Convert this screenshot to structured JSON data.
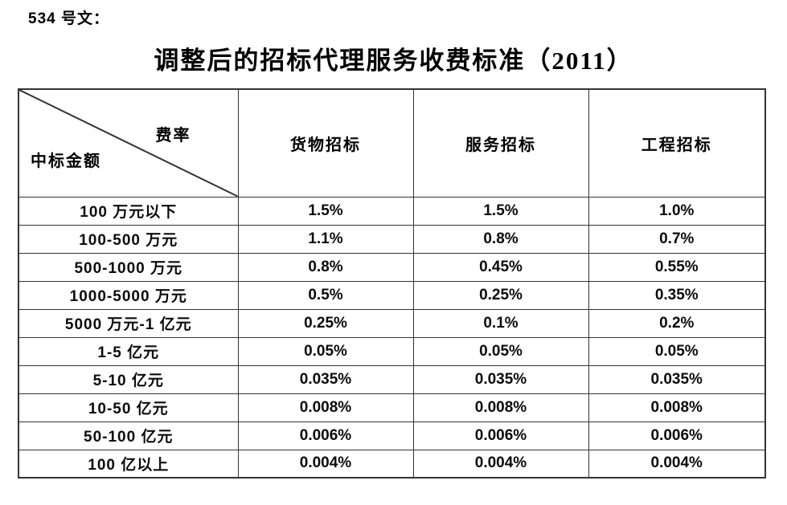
{
  "doc_number": "534 号文：",
  "title": "调整后的招标代理服务收费标准（2011）",
  "table": {
    "corner": {
      "top_right_label": "费率",
      "bottom_left_label": "中标金额"
    },
    "columns": [
      "货物招标",
      "服务招标",
      "工程招标"
    ],
    "rows": [
      {
        "label": "100 万元以下",
        "values": [
          "1.5%",
          "1.5%",
          "1.0%"
        ]
      },
      {
        "label": "100-500 万元",
        "values": [
          "1.1%",
          "0.8%",
          "0.7%"
        ]
      },
      {
        "label": "500-1000 万元",
        "values": [
          "0.8%",
          "0.45%",
          "0.55%"
        ]
      },
      {
        "label": "1000-5000 万元",
        "values": [
          "0.5%",
          "0.25%",
          "0.35%"
        ]
      },
      {
        "label": "5000 万元-1 亿元",
        "values": [
          "0.25%",
          "0.1%",
          "0.2%"
        ]
      },
      {
        "label": "1-5 亿元",
        "values": [
          "0.05%",
          "0.05%",
          "0.05%"
        ]
      },
      {
        "label": "5-10 亿元",
        "values": [
          "0.035%",
          "0.035%",
          "0.035%"
        ]
      },
      {
        "label": "10-50 亿元",
        "values": [
          "0.008%",
          "0.008%",
          "0.008%"
        ]
      },
      {
        "label": "50-100 亿元",
        "values": [
          "0.006%",
          "0.006%",
          "0.006%"
        ]
      },
      {
        "label": "100 亿以上",
        "values": [
          "0.004%",
          "0.004%",
          "0.004%"
        ]
      }
    ],
    "border_color": "#343434",
    "text_color": "#000000",
    "background_color": "#ffffff"
  }
}
